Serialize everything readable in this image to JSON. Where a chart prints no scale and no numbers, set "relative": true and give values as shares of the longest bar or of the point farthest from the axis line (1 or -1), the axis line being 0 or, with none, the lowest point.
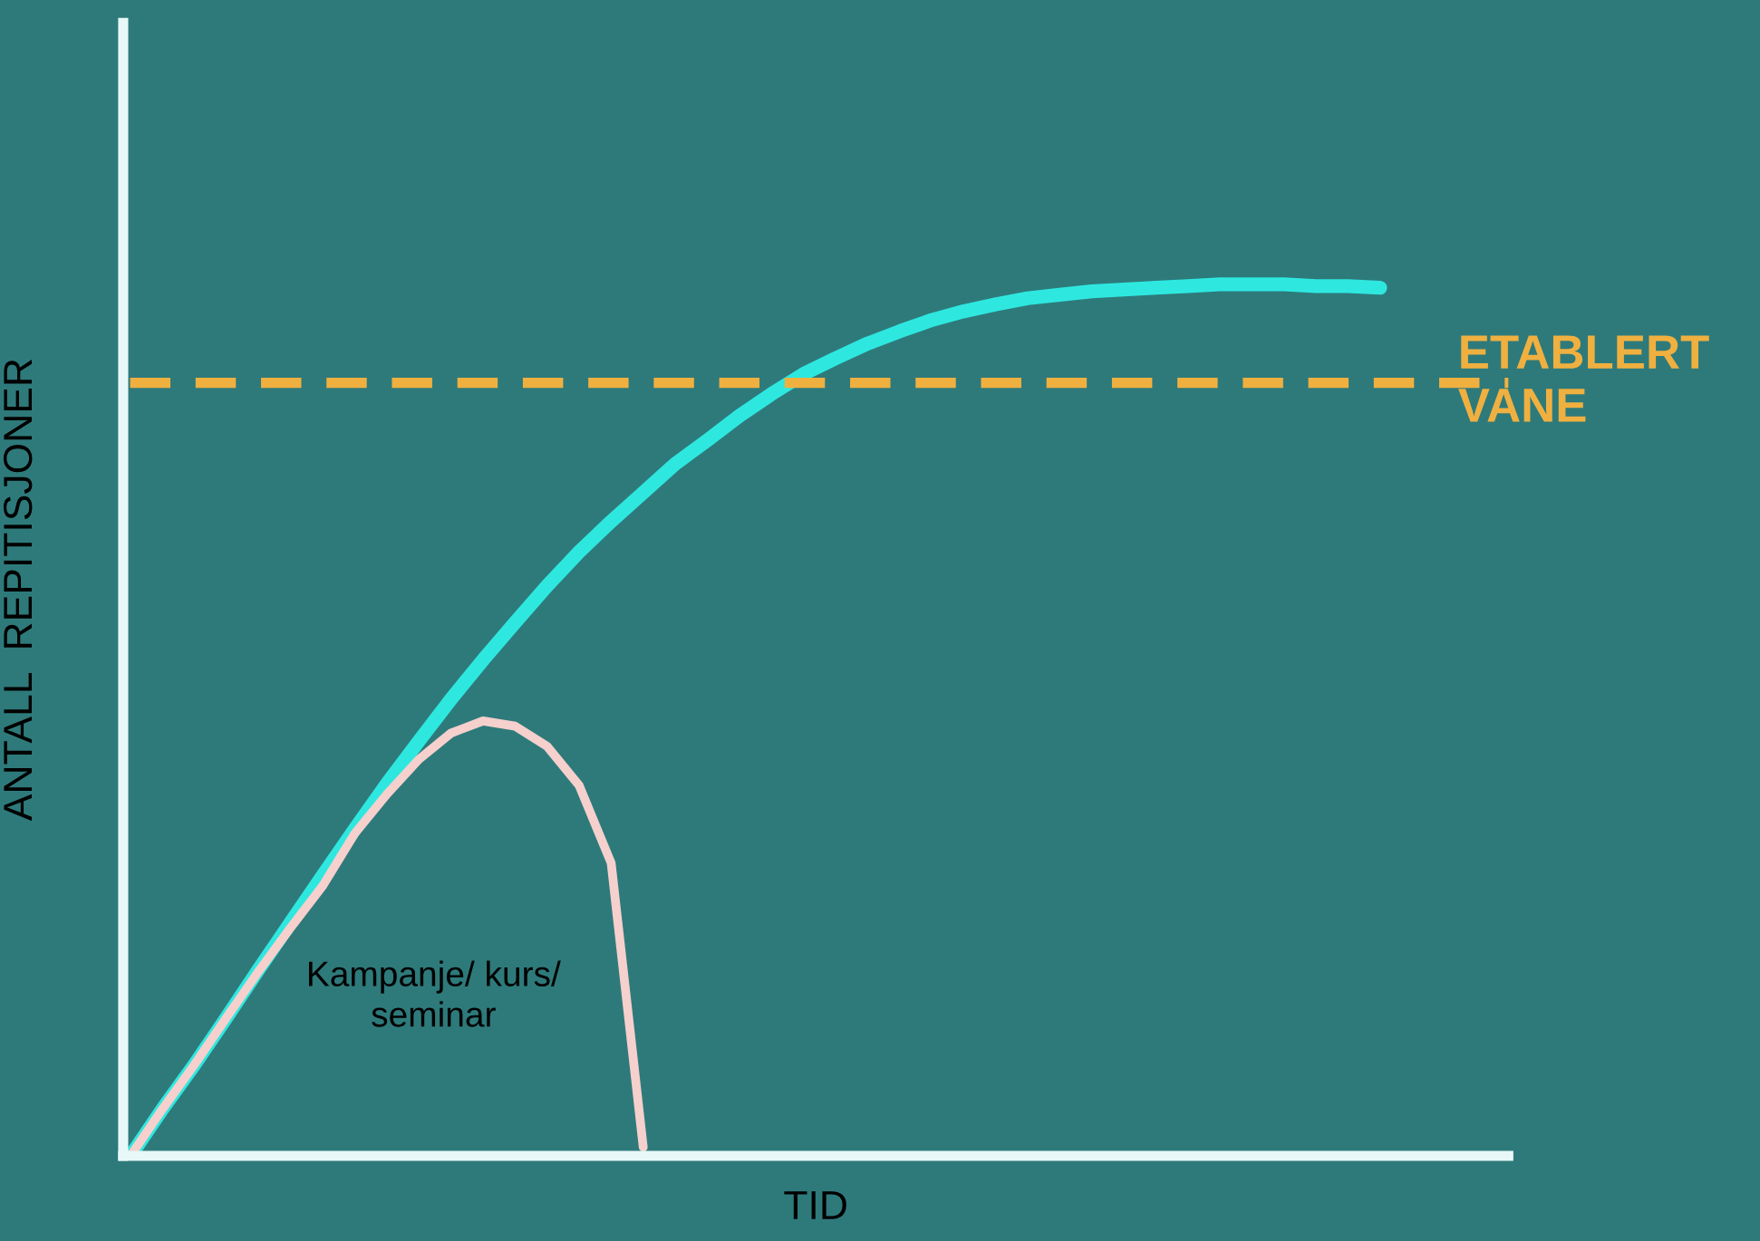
{
  "chart_data": {
    "type": "line",
    "relative": true,
    "xlabel": "TID",
    "ylabel": "ANTALL  REPITISJONER",
    "categories": [
      null,
      null,
      null,
      null,
      null,
      null,
      null,
      null,
      null,
      null,
      null,
      null,
      null,
      null,
      null,
      null,
      null,
      null,
      null,
      null,
      null,
      null,
      null,
      null,
      null,
      null,
      null,
      null,
      null,
      null,
      null,
      null,
      null,
      null,
      null,
      null,
      null,
      null,
      null,
      null
    ],
    "series": [
      {
        "color": "#2ee8e0",
        "values": [
          0,
          0.054,
          0.105,
          0.159,
          0.214,
          0.268,
          0.322,
          0.375,
          0.427,
          0.476,
          0.524,
          0.569,
          0.612,
          0.654,
          0.693,
          0.728,
          0.761,
          0.794,
          0.821,
          0.849,
          0.874,
          0.897,
          0.915,
          0.932,
          0.946,
          0.959,
          0.969,
          0.977,
          0.984,
          0.988,
          0.992,
          0.994,
          0.996,
          0.998,
          1,
          1,
          1,
          0.998,
          0.998,
          0.996
        ]
      },
      {
        "color": "#f5d0cc",
        "values": [
          0,
          0.054,
          0.105,
          0.159,
          0.212,
          0.262,
          0.31,
          0.37,
          0.415,
          0.455,
          0.485,
          0.499,
          0.493,
          0.47,
          0.425,
          0.336,
          0.01,
          null,
          null,
          null,
          null,
          null,
          null,
          null,
          null,
          null,
          null,
          null,
          null,
          null,
          null,
          null,
          null,
          null,
          null,
          null,
          null,
          null,
          null,
          null
        ]
      }
    ],
    "ref_lines": [
      {
        "axis": "y",
        "value": 0.887,
        "label": "ETABLERT\nVANE",
        "color": "#f0b040",
        "line_style": "dashed"
      }
    ],
    "annotations": [
      "Kampanje/ kurs/\nseminar"
    ],
    "legend": false,
    "marker": "none",
    "line_style": "solid"
  }
}
